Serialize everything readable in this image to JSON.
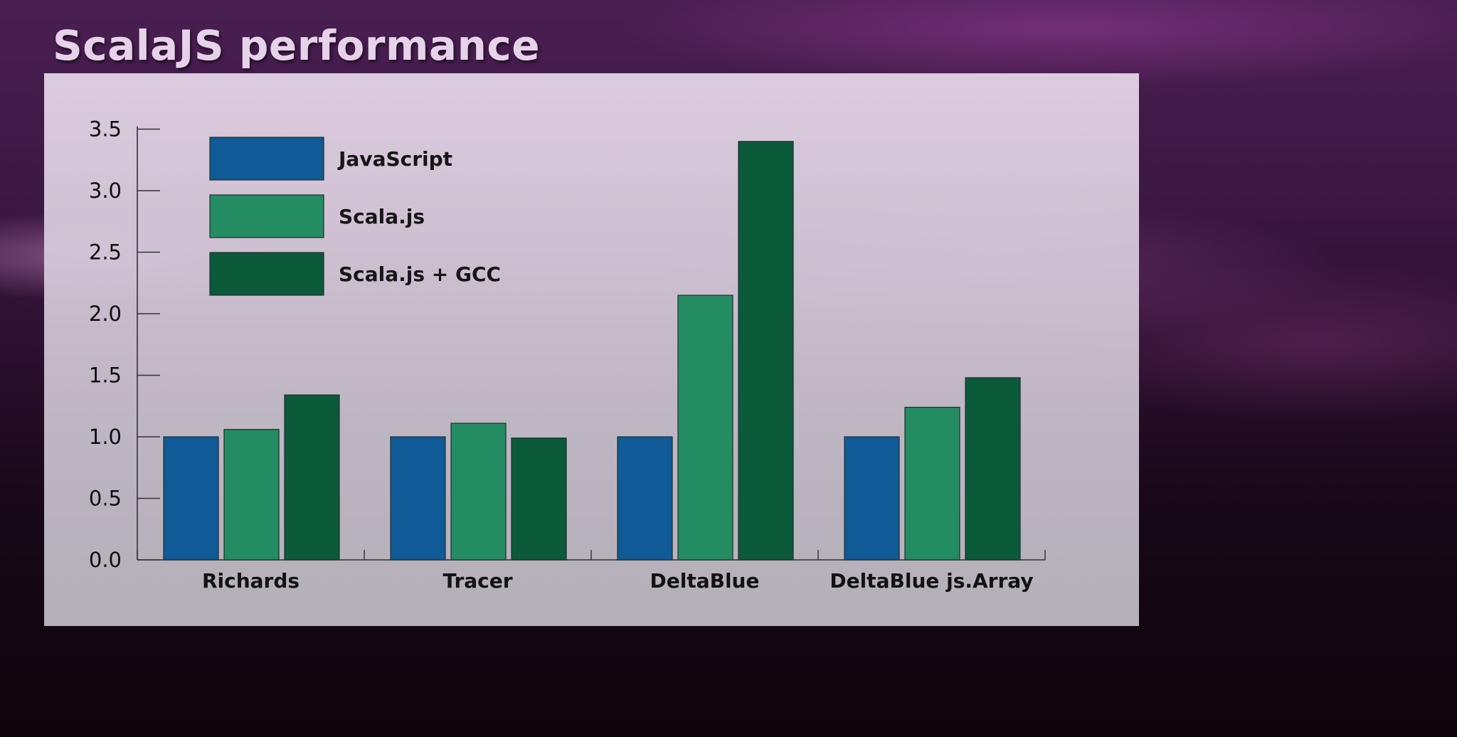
{
  "title": "ScalaJS performance",
  "colors": {
    "javascript": "#0f5a97",
    "scalajs": "#248c62",
    "scalajs_gcc": "#0b5a3a",
    "axis": "#333333"
  },
  "chart_data": {
    "type": "bar",
    "title": "",
    "xlabel": "",
    "ylabel": "",
    "categories": [
      "Richards",
      "Tracer",
      "DeltaBlue",
      "DeltaBlue js.Array"
    ],
    "series": [
      {
        "name": "JavaScript",
        "values": [
          1.0,
          1.0,
          1.0,
          1.0
        ]
      },
      {
        "name": "Scala.js",
        "values": [
          1.06,
          1.11,
          2.15,
          1.24
        ]
      },
      {
        "name": "Scala.js + GCC",
        "values": [
          1.34,
          0.99,
          3.4,
          1.48
        ]
      }
    ],
    "yticks": [
      "0.0",
      "0.5",
      "1.0",
      "1.5",
      "2.0",
      "2.5",
      "3.0",
      "3.5"
    ],
    "ylim": [
      0,
      3.5
    ],
    "grid": false,
    "legend_position": "top-left"
  }
}
